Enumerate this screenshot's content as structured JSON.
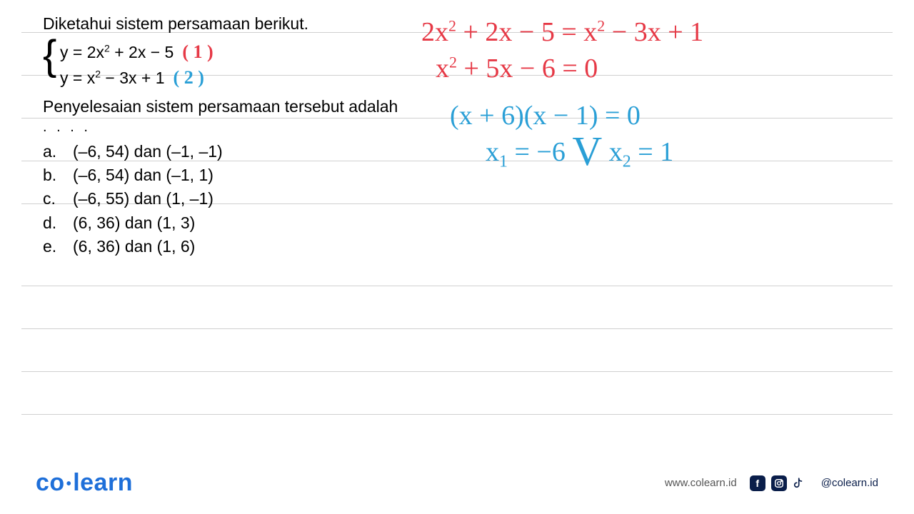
{
  "ruled_line_positions": [
    45,
    105,
    165,
    225,
    285,
    400,
    460,
    520,
    580
  ],
  "problem": {
    "prompt": "Diketahui sistem persamaan berikut.",
    "eq1_html": "y = 2x<sup>2</sup> + 2x − 5",
    "eq1_label": "( 1 )",
    "eq1_label_color": "#e63946",
    "eq2_html": "y = x<sup>2</sup> − 3x + 1",
    "eq2_label": "( 2 )",
    "eq2_label_color": "#2a9fd6",
    "post_prompt": "Penyelesaian sistem persamaan tersebut adalah",
    "dots": ". . . .",
    "options": [
      {
        "letter": "a.",
        "text": "(–6, 54) dan (–1, –1)"
      },
      {
        "letter": "b.",
        "text": "(–6, 54) dan (–1, 1)"
      },
      {
        "letter": "c.",
        "text": "(–6, 55) dan (1, –1)"
      },
      {
        "letter": "d.",
        "text": "(6, 36) dan (1, 3)"
      },
      {
        "letter": "e.",
        "text": "(6, 36) dan (1, 6)"
      }
    ]
  },
  "handwriting": {
    "line1_html": "2x<sup>2</sup> + 2x − 5 = x<sup>2</sup> − 3x + 1",
    "line1_color": "#e63946",
    "line2_html": "x<sup>2</sup> + 5x − 6 = 0",
    "line2_color": "#e63946",
    "line3_html": "(x + 6)(x − 1) = 0",
    "line3_color": "#2a9fd6",
    "line4_html": "x<span class='hw-sub'>1</span> = −6 <span class='big-or'>V</span> x<span class='hw-sub'>2</span> = 1",
    "line4_color": "#2a9fd6"
  },
  "footer": {
    "logo_left": "co",
    "logo_right": "learn",
    "url": "www.colearn.id",
    "handle": "@colearn.id"
  },
  "colors": {
    "rule": "#d0d0d0",
    "text": "#000000",
    "brand": "#1e6fd9",
    "footer_dark": "#0a1e4a"
  }
}
